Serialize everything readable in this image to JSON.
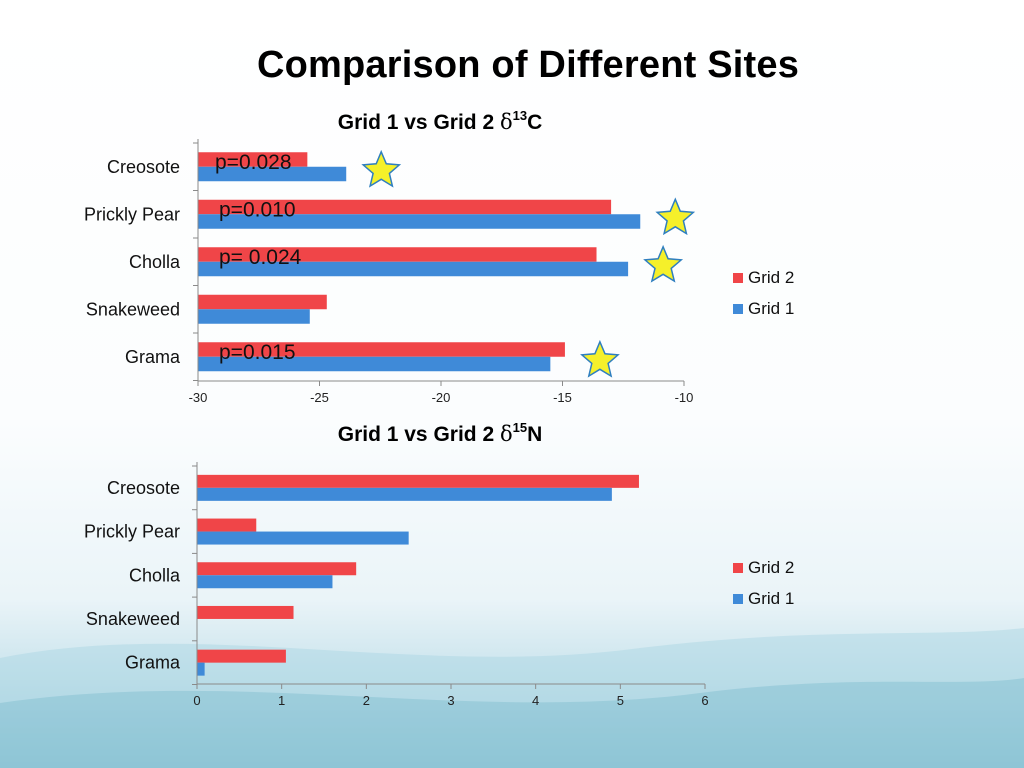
{
  "title": "Comparison of Different Sites",
  "colors": {
    "grid2": "#f04548",
    "grid1": "#3f8ad8",
    "star_fill": "#f5f02a",
    "star_stroke": "#2f7fbf"
  },
  "chart_data": [
    {
      "type": "bar",
      "orientation": "horizontal",
      "title_prefix": "Grid 1 vs Grid 2 ",
      "title_delta": "δ",
      "title_sup": "13",
      "title_elem": "C",
      "categories": [
        "Creosote",
        "Prickly Pear",
        "Cholla",
        "Snakeweed",
        "Grama"
      ],
      "series": [
        {
          "name": "Grid 2",
          "color": "#f04548",
          "values": [
            -25.5,
            -13.0,
            -13.6,
            -24.7,
            -14.9
          ]
        },
        {
          "name": "Grid 1",
          "color": "#3f8ad8",
          "values": [
            -23.9,
            -11.8,
            -12.3,
            -25.4,
            -15.5
          ]
        }
      ],
      "xlim": [
        -30,
        -10
      ],
      "xticks": [
        "-30",
        "-25",
        "-20",
        "-15",
        "-10"
      ],
      "legend": "right",
      "annotations": [
        {
          "category": "Creosote",
          "text": "p=0.028",
          "star": true
        },
        {
          "category": "Prickly Pear",
          "text": "p=0.010",
          "star": true
        },
        {
          "category": "Cholla",
          "text": "p= 0.024",
          "star": true
        },
        {
          "category": "Grama",
          "text": "p=0.015",
          "star": true
        }
      ]
    },
    {
      "type": "bar",
      "orientation": "horizontal",
      "title_prefix": "Grid 1 vs Grid 2 ",
      "title_delta": "δ",
      "title_sup": "15",
      "title_elem": "N",
      "categories": [
        "Creosote",
        "Prickly Pear",
        "Cholla",
        "Snakeweed",
        "Grama"
      ],
      "series": [
        {
          "name": "Grid 2",
          "color": "#f04548",
          "values": [
            5.22,
            0.7,
            1.88,
            1.14,
            1.05
          ]
        },
        {
          "name": "Grid 1",
          "color": "#3f8ad8",
          "values": [
            4.9,
            2.5,
            1.6,
            0,
            0.09
          ]
        }
      ],
      "xlim": [
        0,
        6
      ],
      "xticks": [
        "0",
        "1",
        "2",
        "3",
        "4",
        "5",
        "6"
      ],
      "legend": "right",
      "annotations": []
    }
  ]
}
